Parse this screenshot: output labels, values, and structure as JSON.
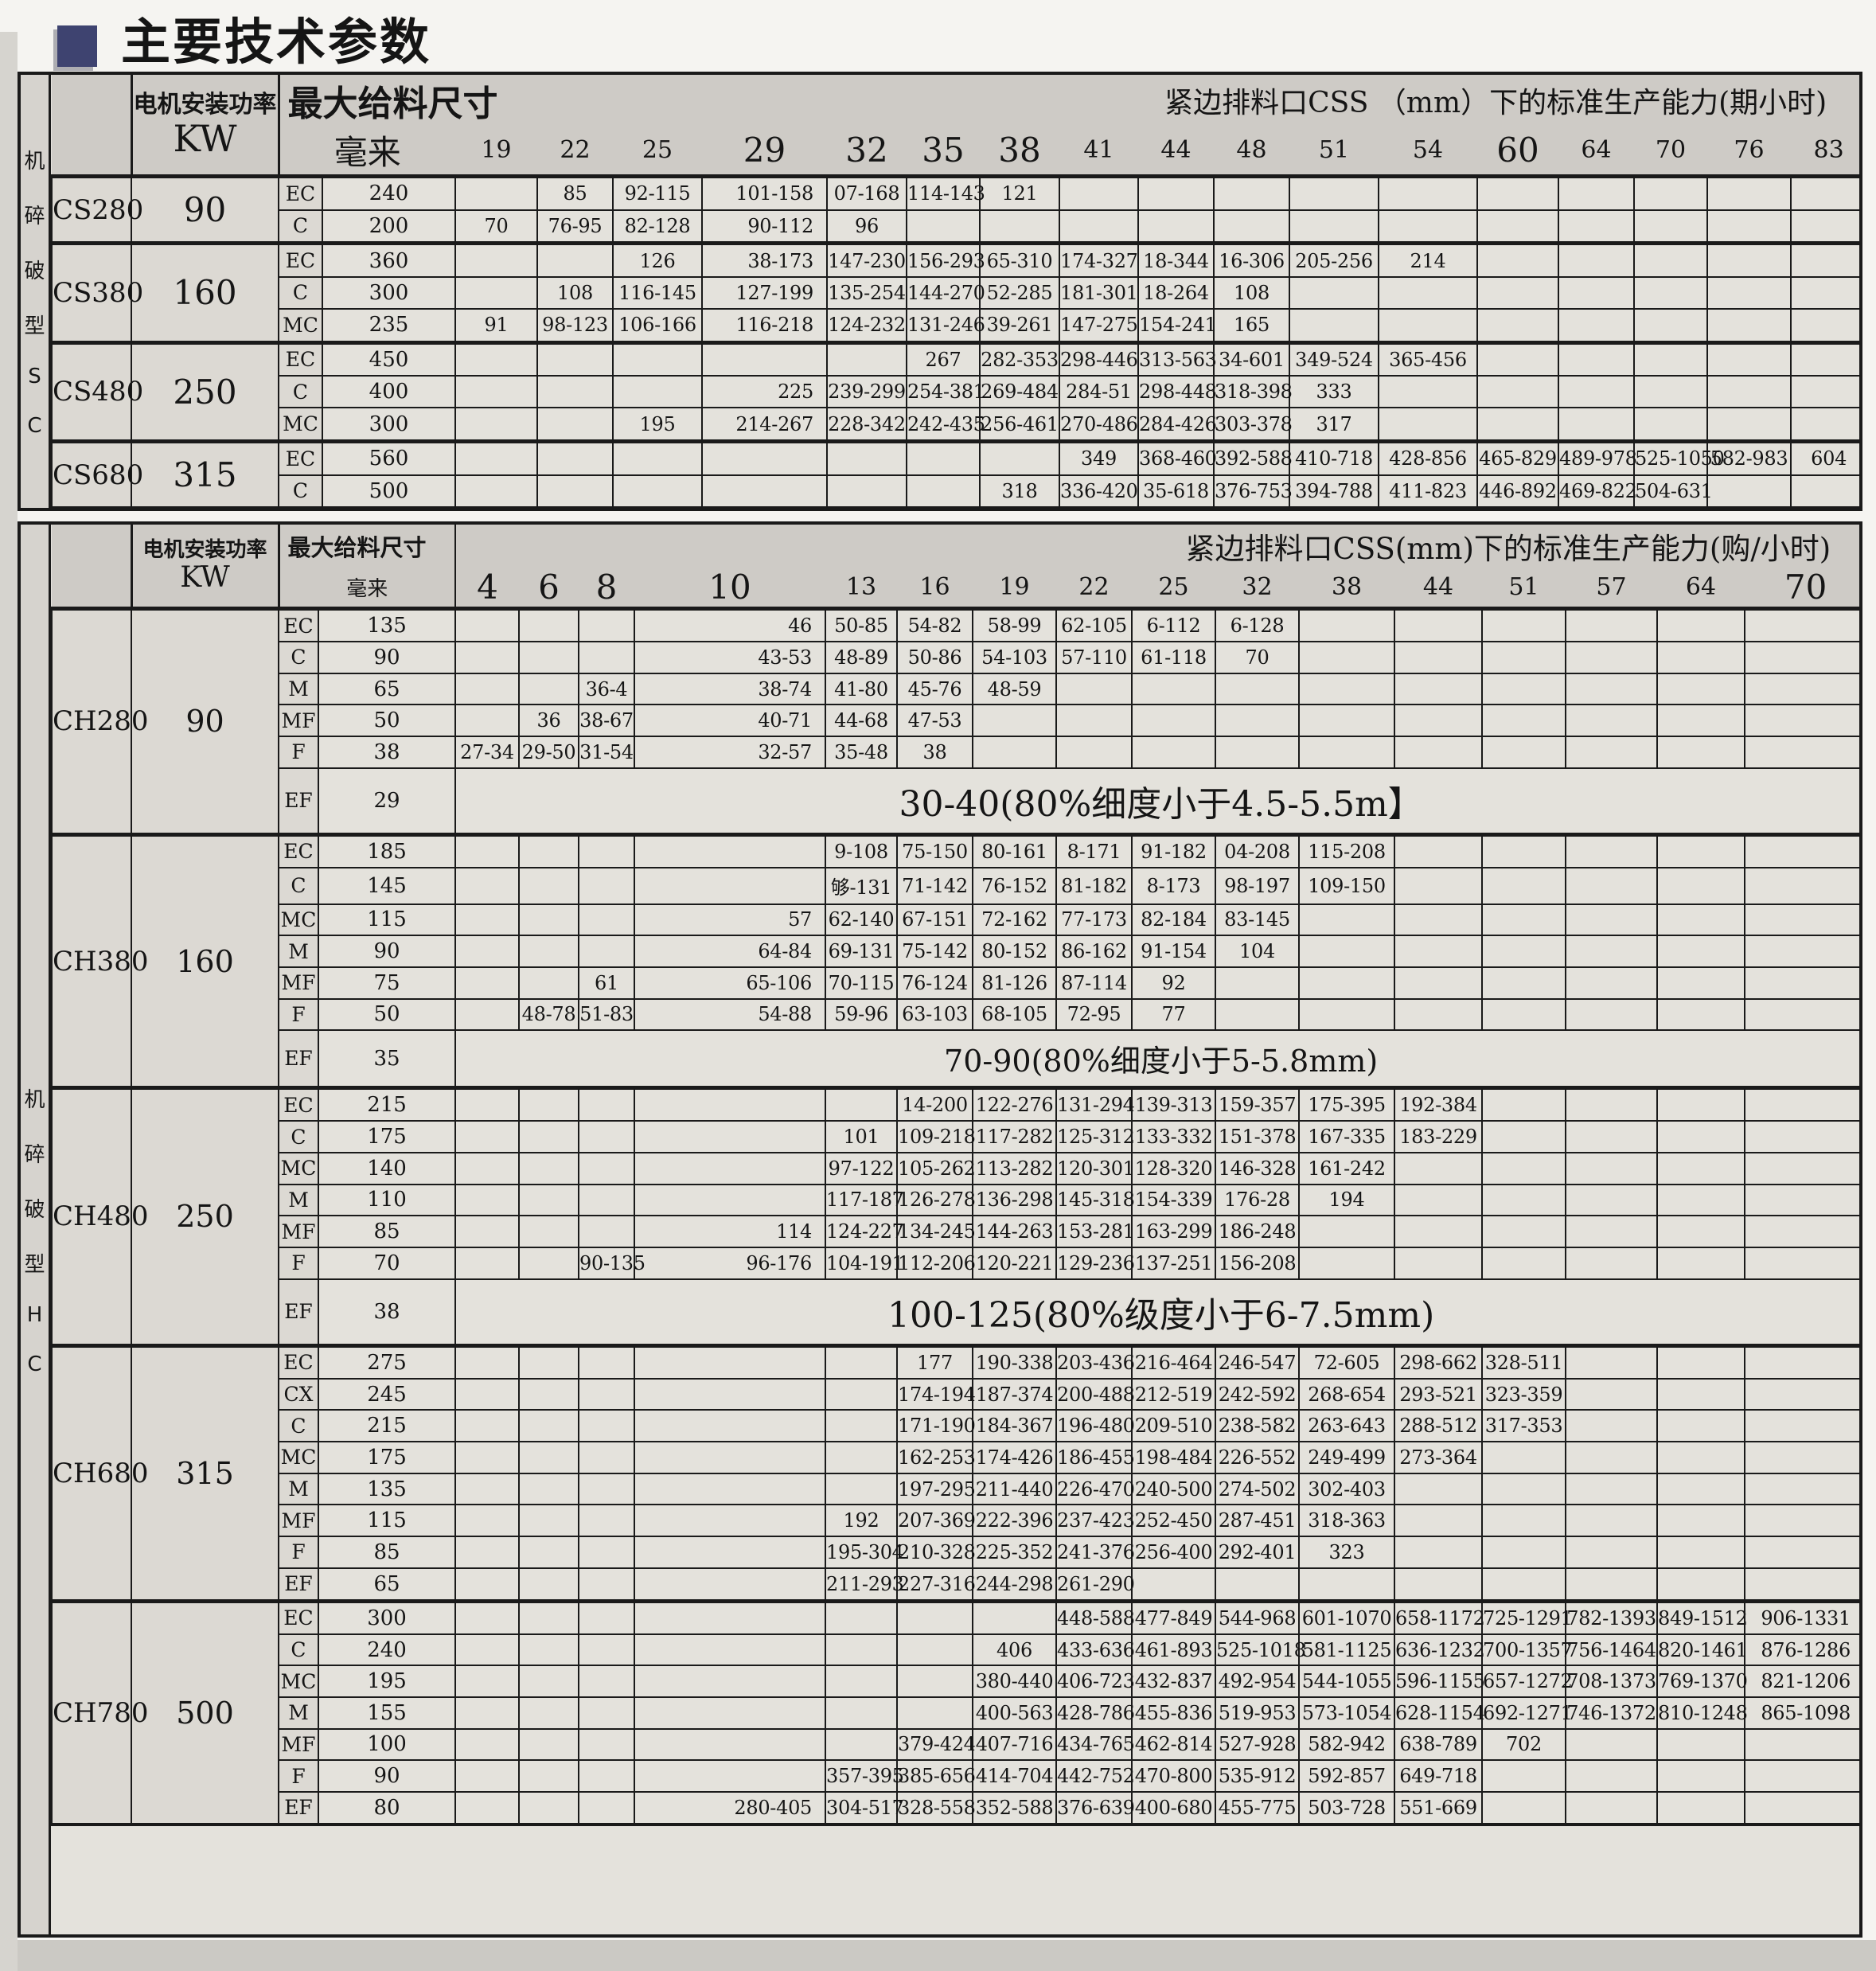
{
  "title": "主要技术参数",
  "colors": {
    "accent_square": "#3e4370",
    "border": "#1a1a1a",
    "table_bg": "#e4e2dc",
    "header_bg": "#cecbc6",
    "left_cols_bg": "#dcd9d3",
    "sidebar_bg": "#d6d3ce",
    "page_bg": "#f5f4f1",
    "bottom_strip": "#cbc9c4"
  },
  "tables": [
    {
      "id": "cs",
      "sidebar_label": "CS型破碎机",
      "sidebar_chars": [
        "机",
        "碎",
        "破",
        "型",
        "S",
        "C"
      ],
      "header": {
        "power_label": "电机安装功率",
        "power_unit": "KW",
        "feed_label": "最大给料尺寸",
        "feed_unit": "毫来",
        "css_title": "紧边排料口CSS （mm）下的标准生产能力(期小时)",
        "columns": [
          "19",
          "22",
          "25",
          "29",
          "32",
          "35",
          "38",
          "41",
          "44",
          "48",
          "51",
          "54",
          "60",
          "64",
          "70",
          "76",
          "83"
        ]
      },
      "wide_col": "29",
      "groups": [
        {
          "model": "CS280",
          "power": "90",
          "rows": [
            {
              "type": "EC",
              "feed": "240",
              "cells": {
                "22": "85",
                "25": "92-115",
                "29": "101-158",
                "32": "07-168",
                "35": "114-143",
                "38": "121"
              }
            },
            {
              "type": "C",
              "feed": "200",
              "cells": {
                "19": "70",
                "22": "76-95",
                "25": "82-128",
                "29": "90-112",
                "32": "96"
              }
            }
          ]
        },
        {
          "model": "CS380",
          "power": "160",
          "rows": [
            {
              "type": "EC",
              "feed": "360",
              "cells": {
                "25": "126",
                "29": "38-173",
                "32": "147-230",
                "35": "156-293",
                "38": "65-310",
                "41": "174-327",
                "44": "18-344",
                "48": "16-306",
                "51": "205-256",
                "54": "214"
              }
            },
            {
              "type": "C",
              "feed": "300",
              "cells": {
                "22": "108",
                "25": "116-145",
                "29": "127-199",
                "32": "135-254",
                "35": "144-270",
                "38": "52-285",
                "41": "181-301",
                "44": "18-264",
                "48": "108"
              }
            },
            {
              "type": "MC",
              "feed": "235",
              "cells": {
                "19": "91",
                "22": "98-123",
                "25": "106-166",
                "29": "116-218",
                "32": "124-232",
                "35": "131-246",
                "38": "39-261",
                "41": "147-275",
                "44": "154-241",
                "48": "165"
              }
            }
          ]
        },
        {
          "model": "CS480",
          "power": "250",
          "rows": [
            {
              "type": "EC",
              "feed": "450",
              "cells": {
                "35": "267",
                "38": "282-353",
                "41": "298-446",
                "44": "313-563",
                "48": "34-601",
                "51": "349-524",
                "54": "365-456"
              }
            },
            {
              "type": "C",
              "feed": "400",
              "cells": {
                "29": "225",
                "32": "239-299",
                "35": "254-381",
                "38": "269-484",
                "41": "284-51",
                "44": "298-448",
                "48": "318-398",
                "51": "333"
              }
            },
            {
              "type": "MC",
              "feed": "300",
              "cells": {
                "25": "195",
                "29": "214-267",
                "32": "228-342",
                "35": "242-435",
                "38": "256-461",
                "41": "270-486",
                "44": "284-426",
                "48": "303-378",
                "51": "317"
              }
            }
          ]
        },
        {
          "model": "CS680",
          "power": "315",
          "rows": [
            {
              "type": "EC",
              "feed": "560",
              "cells": {
                "41": "349",
                "44": "368-460",
                "48": "392-588",
                "51": "410-718",
                "54": "428-856",
                "60": "465-829",
                "64": "489-978",
                "70": "525-1050",
                "76": "582-983",
                "83": "604"
              }
            },
            {
              "type": "C",
              "feed": "500",
              "cells": {
                "38": "318",
                "41": "336-420",
                "44": "35-618",
                "48": "376-753",
                "51": "394-788",
                "54": "411-823",
                "60": "446-892",
                "64": "469-822",
                "70": "504-631"
              }
            }
          ]
        }
      ]
    },
    {
      "id": "ch",
      "sidebar_label": "CH型破碎机",
      "sidebar_chars": [
        "机",
        "碎",
        "破",
        "型",
        "H",
        "C"
      ],
      "header": {
        "power_label": "电机安装功率",
        "power_unit": "KW",
        "feed_label": "最大给料尺寸",
        "feed_unit": "毫来",
        "css_title": "紧边排料口CSS(mm)下的标准生产能力(购/小时)",
        "columns": [
          "4",
          "6",
          "8",
          "10",
          "13",
          "16",
          "19",
          "22",
          "25",
          "32",
          "38",
          "44",
          "51",
          "57",
          "64",
          "70"
        ]
      },
      "wide_col": "10",
      "has_filler": true,
      "groups": [
        {
          "model": "CH280",
          "power": "90",
          "rows": [
            {
              "type": "EC",
              "feed": "135",
              "cells": {
                "10": "46",
                "13": "50-85",
                "16": "54-82",
                "19": "58-99",
                "22": "62-105",
                "25": "6-112",
                "32": "6-128"
              }
            },
            {
              "type": "C",
              "feed": "90",
              "cells": {
                "10": "43-53",
                "13": "48-89",
                "16": "50-86",
                "19": "54-103",
                "22": "57-110",
                "25": "61-118",
                "32": "70"
              }
            },
            {
              "type": "M",
              "feed": "65",
              "cells": {
                "8": "36-4",
                "10": "38-74",
                "13": "41-80",
                "16": "45-76",
                "19": "48-59"
              }
            },
            {
              "type": "MF",
              "feed": "50",
              "cells": {
                "6": "36",
                "8": "38-67",
                "10": "40-71",
                "13": "44-68",
                "16": "47-53"
              }
            },
            {
              "type": "F",
              "feed": "38",
              "cells": {
                "4": "27-34",
                "6": "29-50",
                "8": "31-54",
                "10": "32-57",
                "13": "35-48",
                "16": "38"
              }
            },
            {
              "type": "EF",
              "feed": "29",
              "note": "30-40(80%细度小于4.5-5.5m】"
            }
          ]
        },
        {
          "model": "CH380",
          "power": "160",
          "rows": [
            {
              "type": "EC",
              "feed": "185",
              "cells": {
                "13": "9-108",
                "16": "75-150",
                "19": "80-161",
                "22": "8-171",
                "25": "91-182",
                "32": "04-208",
                "38": "115-208"
              }
            },
            {
              "type": "C",
              "feed": "145",
              "cells": {
                "13": "够-131",
                "16": "71-142",
                "19": "76-152",
                "22": "81-182",
                "25": "8-173",
                "32": "98-197",
                "38": "109-150"
              }
            },
            {
              "type": "MC",
              "feed": "115",
              "cells": {
                "10": "57",
                "13": "62-140",
                "16": "67-151",
                "19": "72-162",
                "22": "77-173",
                "25": "82-184",
                "32": "83-145"
              }
            },
            {
              "type": "M",
              "feed": "90",
              "cells": {
                "10": "64-84",
                "13": "69-131",
                "16": "75-142",
                "19": "80-152",
                "22": "86-162",
                "25": "91-154",
                "32": "104"
              }
            },
            {
              "type": "MF",
              "feed": "75",
              "cells": {
                "8": "61",
                "10": "65-106",
                "13": "70-115",
                "16": "76-124",
                "19": "81-126",
                "22": "87-114",
                "25": "92"
              }
            },
            {
              "type": "F",
              "feed": "50",
              "cells": {
                "6": "48-78",
                "8": "51-83",
                "10": "54-88",
                "13": "59-96",
                "16": "63-103",
                "19": "68-105",
                "22": "72-95",
                "25": "77"
              }
            },
            {
              "type": "EF",
              "feed": "35",
              "note": "70-90(80%细度小于5-5.8mm)"
            }
          ]
        },
        {
          "model": "CH480",
          "power": "250",
          "rows": [
            {
              "type": "EC",
              "feed": "215",
              "cells": {
                "16": "14-200",
                "19": "122-276",
                "22": "131-294",
                "25": "139-313",
                "32": "159-357",
                "38": "175-395",
                "44": "192-384"
              }
            },
            {
              "type": "C",
              "feed": "175",
              "cells": {
                "13": "101",
                "16": "109-218",
                "19": "117-282",
                "22": "125-312",
                "25": "133-332",
                "32": "151-378",
                "38": "167-335",
                "44": "183-229"
              }
            },
            {
              "type": "MC",
              "feed": "140",
              "cells": {
                "13": "97-122",
                "16": "105-262",
                "19": "113-282",
                "22": "120-301",
                "25": "128-320",
                "32": "146-328",
                "38": "161-242"
              }
            },
            {
              "type": "M",
              "feed": "110",
              "cells": {
                "13": "117-187",
                "16": "126-278",
                "19": "136-298",
                "22": "145-318",
                "25": "154-339",
                "32": "176-28",
                "38": "194"
              }
            },
            {
              "type": "MF",
              "feed": "85",
              "cells": {
                "10": "114",
                "13": "124-227",
                "16": "134-245",
                "19": "144-263",
                "22": "153-281",
                "25": "163-299",
                "32": "186-248"
              }
            },
            {
              "type": "F",
              "feed": "70",
              "cells": {
                "8": "90-135",
                "10": "96-176",
                "13": "104-191",
                "16": "112-206",
                "19": "120-221",
                "22": "129-236",
                "25": "137-251",
                "32": "156-208"
              }
            },
            {
              "type": "EF",
              "feed": "38",
              "note": "100-125(80%级度小于6-7.5mm)"
            }
          ]
        },
        {
          "model": "CH680",
          "power": "315",
          "rows": [
            {
              "type": "EC",
              "feed": "275",
              "cells": {
                "16": "177",
                "19": "190-338",
                "22": "203-436",
                "25": "216-464",
                "32": "246-547",
                "38": "72-605",
                "44": "298-662",
                "51": "328-511"
              }
            },
            {
              "type": "CX",
              "feed": "245",
              "cells": {
                "16": "174-194",
                "19": "187-374",
                "22": "200-488",
                "25": "212-519",
                "32": "242-592",
                "38": "268-654",
                "44": "293-521",
                "51": "323-359"
              }
            },
            {
              "type": "C",
              "feed": "215",
              "cells": {
                "16": "171-190",
                "19": "184-367",
                "22": "196-480",
                "25": "209-510",
                "32": "238-582",
                "38": "263-643",
                "44": "288-512",
                "51": "317-353"
              }
            },
            {
              "type": "MC",
              "feed": "175",
              "cells": {
                "16": "162-253",
                "19": "174-426",
                "22": "186-455",
                "25": "198-484",
                "32": "226-552",
                "38": "249-499",
                "44": "273-364"
              }
            },
            {
              "type": "M",
              "feed": "135",
              "cells": {
                "16": "197-295",
                "19": "211-440",
                "22": "226-470",
                "25": "240-500",
                "32": "274-502",
                "38": "302-403"
              }
            },
            {
              "type": "MF",
              "feed": "115",
              "cells": {
                "13": "192",
                "16": "207-369",
                "19": "222-396",
                "22": "237-423",
                "25": "252-450",
                "32": "287-451",
                "38": "318-363"
              }
            },
            {
              "type": "F",
              "feed": "85",
              "cells": {
                "13": "195-304",
                "16": "210-328",
                "19": "225-352",
                "22": "241-376",
                "25": "256-400",
                "32": "292-401",
                "38": "323"
              }
            },
            {
              "type": "EF",
              "feed": "65",
              "cells": {
                "13": "211-293",
                "16": "227-316",
                "19": "244-298",
                "22": "261-290"
              }
            }
          ]
        },
        {
          "model": "CH780",
          "power": "500",
          "rows": [
            {
              "type": "EC",
              "feed": "300",
              "cells": {
                "22": "448-588",
                "25": "477-849",
                "32": "544-968",
                "38": "601-1070",
                "44": "658-1172",
                "51": "725-1291",
                "57": "782-1393",
                "64": "849-1512",
                "70": "906-1331"
              }
            },
            {
              "type": "C",
              "feed": "240",
              "cells": {
                "19": "406",
                "22": "433-636",
                "25": "461-893",
                "32": "525-1018",
                "38": "581-1125",
                "44": "636-1232",
                "51": "700-1357",
                "57": "756-1464",
                "64": "820-1461",
                "70": "876-1286"
              }
            },
            {
              "type": "MC",
              "feed": "195",
              "cells": {
                "19": "380-440",
                "22": "406-723",
                "25": "432-837",
                "32": "492-954",
                "38": "544-1055",
                "44": "596-1155",
                "51": "657-1272",
                "57": "708-1373",
                "64": "769-1370",
                "70": "821-1206"
              }
            },
            {
              "type": "M",
              "feed": "155",
              "cells": {
                "19": "400-563",
                "22": "428-786",
                "25": "455-836",
                "32": "519-953",
                "38": "573-1054",
                "44": "628-1154",
                "51": "692-1271",
                "57": "746-1372",
                "64": "810-1248",
                "70": "865-1098"
              }
            },
            {
              "type": "MF",
              "feed": "100",
              "cells": {
                "16": "379-424",
                "19": "407-716",
                "22": "434-765",
                "25": "462-814",
                "32": "527-928",
                "38": "582-942",
                "44": "638-789",
                "51": "702"
              }
            },
            {
              "type": "F",
              "feed": "90",
              "cells": {
                "13": "357-395",
                "16": "385-656",
                "19": "414-704",
                "22": "442-752",
                "25": "470-800",
                "32": "535-912",
                "38": "592-857",
                "44": "649-718"
              }
            },
            {
              "type": "EF",
              "feed": "80",
              "cells": {
                "10": "280-405",
                "13": "304-517",
                "16": "328-558",
                "19": "352-588",
                "22": "376-639",
                "25": "400-680",
                "32": "455-775",
                "38": "503-728",
                "44": "551-669"
              }
            }
          ]
        }
      ]
    }
  ]
}
